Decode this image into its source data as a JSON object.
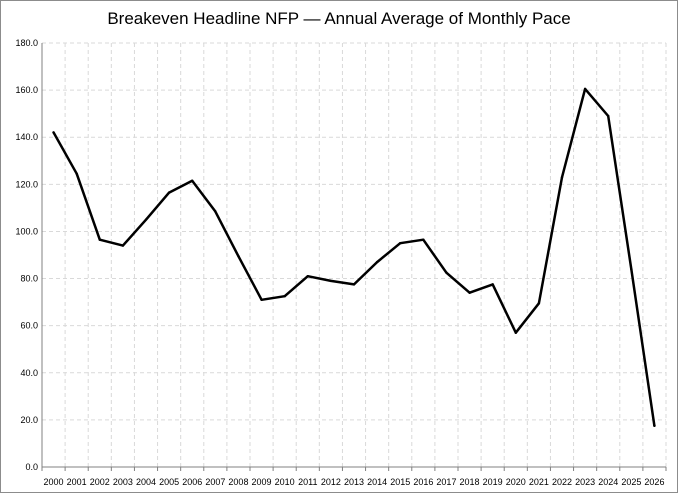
{
  "chart_data": {
    "type": "line",
    "title": "Breakeven Headline NFP — Annual Average of Monthly Pace",
    "xlabel": "",
    "ylabel": "",
    "x": [
      "2000",
      "2001",
      "2002",
      "2003",
      "2004",
      "2005",
      "2006",
      "2007",
      "2008",
      "2009",
      "2010",
      "2011",
      "2012",
      "2013",
      "2014",
      "2015",
      "2016",
      "2017",
      "2018",
      "2019",
      "2020",
      "2021",
      "2022",
      "2023",
      "2024",
      "2025",
      "2026"
    ],
    "series": [
      {
        "values": [
          142.0,
          124.5,
          96.5,
          94.0,
          105.0,
          116.5,
          121.5,
          108.5,
          89.5,
          71.0,
          72.5,
          81.0,
          79.0,
          77.5,
          87.0,
          95.0,
          96.5,
          82.5,
          74.0,
          77.5,
          57.0,
          69.5,
          123.0,
          160.5,
          149.0,
          84.0,
          17.5
        ]
      }
    ],
    "ylim": [
      0,
      180
    ],
    "yticks": [
      "0.0",
      "20.0",
      "40.0",
      "60.0",
      "80.0",
      "100.0",
      "120.0",
      "140.0",
      "160.0",
      "180.0"
    ],
    "grid": true,
    "legend": "none",
    "line_color": "#000000",
    "grid_color": "#d9d9d9"
  }
}
